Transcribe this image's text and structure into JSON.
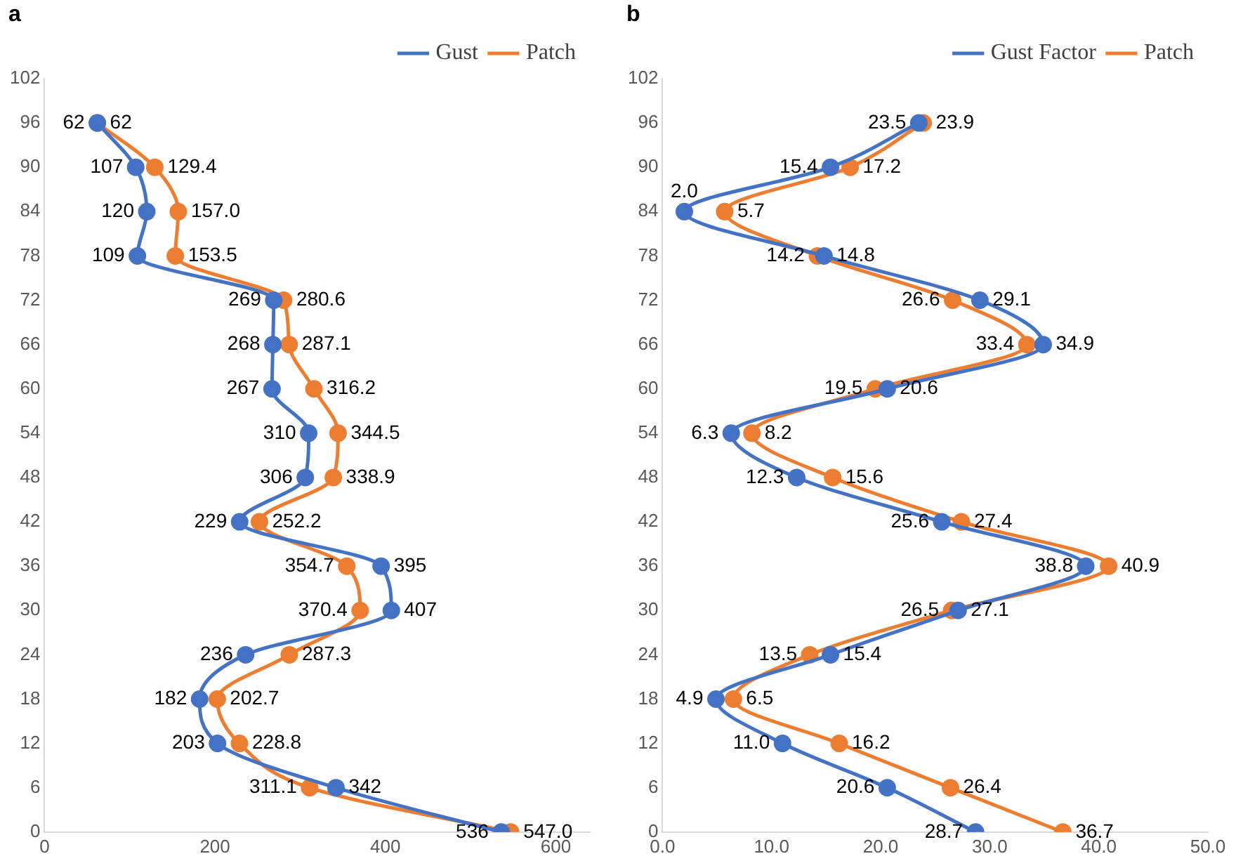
{
  "chart_data": [
    {
      "type": "line",
      "orientation": "horizontal",
      "title": "a",
      "xlim": [
        0,
        640
      ],
      "xticks": [
        0,
        200,
        400,
        600
      ],
      "ylim": [
        0,
        102
      ],
      "yticks": [
        0,
        6,
        12,
        18,
        24,
        30,
        36,
        42,
        48,
        54,
        60,
        66,
        72,
        78,
        84,
        90,
        96,
        102
      ],
      "grid": false,
      "legend": "top right",
      "marker": "circle",
      "line_style": "solid",
      "series": [
        {
          "name": "Gust",
          "color": "#4472c4",
          "x": [
            96,
            90,
            84,
            78,
            72,
            66,
            60,
            54,
            48,
            42,
            36,
            30,
            24,
            18,
            12,
            6,
            0
          ],
          "values": [
            62,
            107,
            120,
            109,
            269,
            268,
            267,
            310,
            306,
            229,
            395,
            407,
            236,
            182,
            203,
            342,
            536
          ],
          "value_labels": [
            "62",
            "107",
            "120",
            "109",
            "269",
            "268",
            "267",
            "310",
            "306",
            "229",
            "395",
            "407",
            "236",
            "182",
            "203",
            "342",
            "536"
          ]
        },
        {
          "name": "Patch",
          "color": "#ed7d31",
          "x": [
            96,
            90,
            84,
            78,
            72,
            66,
            60,
            54,
            48,
            42,
            36,
            30,
            24,
            18,
            12,
            6,
            0
          ],
          "values": [
            62,
            129.4,
            157.0,
            153.5,
            280.6,
            287.1,
            316.2,
            344.5,
            338.9,
            252.2,
            354.7,
            370.4,
            287.3,
            202.7,
            228.8,
            311.1,
            547.0
          ],
          "value_labels": [
            "62",
            "129.4",
            "157.0",
            "153.5",
            "280.6",
            "287.1",
            "316.2",
            "344.5",
            "338.9",
            "252.2",
            "354.7",
            "370.4",
            "287.3",
            "202.7",
            "228.8",
            "311.1",
            "547.0"
          ]
        }
      ]
    },
    {
      "type": "line",
      "orientation": "horizontal",
      "title": "b",
      "xlim": [
        0,
        50
      ],
      "xticks": [
        {
          "value": 0,
          "label": "0.0"
        },
        {
          "value": 10,
          "label": "10.0"
        },
        {
          "value": 20,
          "label": "20.0"
        },
        {
          "value": 30,
          "label": "30.0"
        },
        {
          "value": 40,
          "label": "40.0"
        },
        {
          "value": 50,
          "label": "50.0"
        }
      ],
      "ylim": [
        0,
        102
      ],
      "yticks": [
        0,
        6,
        12,
        18,
        24,
        30,
        36,
        42,
        48,
        54,
        60,
        66,
        72,
        78,
        84,
        90,
        96,
        102
      ],
      "grid": false,
      "legend": "top right",
      "marker": "circle",
      "line_style": "solid",
      "series": [
        {
          "name": "Gust Factor",
          "color": "#4472c4",
          "x": [
            96,
            90,
            84,
            78,
            72,
            66,
            60,
            54,
            48,
            42,
            36,
            30,
            24,
            18,
            12,
            6,
            0
          ],
          "values": [
            23.5,
            15.4,
            2.0,
            14.8,
            29.1,
            34.9,
            20.6,
            6.3,
            12.3,
            25.6,
            38.8,
            27.1,
            15.4,
            4.9,
            11.0,
            20.6,
            28.7
          ],
          "value_labels": [
            "23.5",
            "15.4",
            "2.0",
            "14.8",
            "29.1",
            "34.9",
            "20.6",
            "6.3",
            "12.3",
            "25.6",
            "38.8",
            "27.1",
            "15.4",
            "4.9",
            "11.0",
            "20.6",
            "28.7"
          ]
        },
        {
          "name": "Patch",
          "color": "#ed7d31",
          "x": [
            96,
            90,
            84,
            78,
            72,
            66,
            60,
            54,
            48,
            42,
            36,
            30,
            24,
            18,
            12,
            6,
            0
          ],
          "values": [
            23.9,
            17.2,
            5.7,
            14.2,
            26.6,
            33.4,
            19.5,
            8.2,
            15.6,
            27.4,
            40.9,
            26.5,
            13.5,
            6.5,
            16.2,
            26.4,
            36.7
          ],
          "value_labels": [
            "23.9",
            "17.2",
            "5.7",
            "14.2",
            "26.6",
            "33.4",
            "19.5",
            "8.2",
            "15.6",
            "27.4",
            "40.9",
            "26.5",
            "13.5",
            "6.5",
            "16.2",
            "26.4",
            "36.7"
          ]
        }
      ]
    }
  ]
}
